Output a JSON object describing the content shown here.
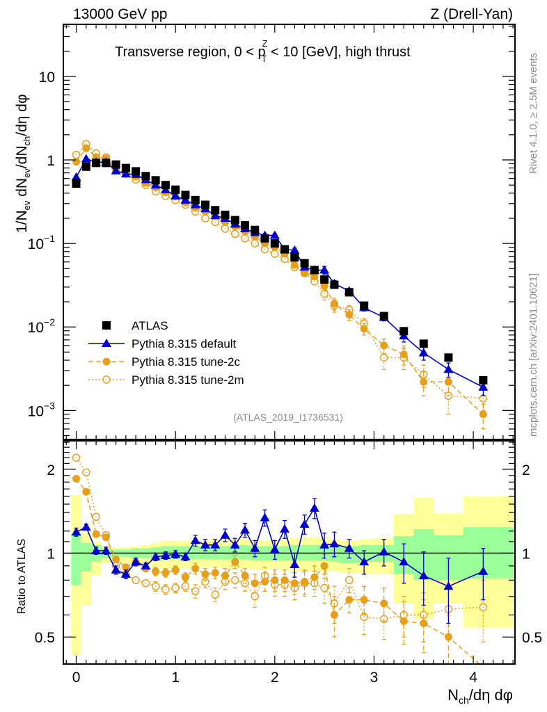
{
  "header": {
    "left": "13000 GeV pp",
    "right": "Z (Drell-Yan)"
  },
  "side_labels": {
    "rivet": "Rivet 4.1.0, ≥ 2.5M events",
    "mcplots": "mcplots.cern.ch [arXiv:2401.10621]"
  },
  "colors": {
    "atlas": "#000000",
    "default": "#0000cc",
    "tune2c": "#e69f1a",
    "tune2m": "#e69f1a",
    "band_inner": "#99ff99",
    "band_outer": "#ffff99"
  },
  "chart_data": [
    {
      "type": "scatter",
      "panel": "main",
      "title": "Transverse region, 0 < p_T^Z < 10 [GeV], high thrust",
      "title_parts": {
        "pre": "Transverse region, 0 < p",
        "sup": "Z",
        "sub": "T",
        "post": " < 10 [GeV], high thrust"
      },
      "analysis_label": "(ATLAS_2019_I1736531)",
      "xlabel": "N_ch/dη dφ",
      "xlabel_parts": {
        "main": "N",
        "sub": "ch",
        "post": "/dη dφ"
      },
      "ylabel": "1/N_ev dN_ev/dN_ch/dη dφ",
      "ylabel_parts": [
        "1/N",
        "ev",
        " dN",
        "ev",
        "/dN",
        "ch",
        "/dη dφ"
      ],
      "yscale": "log",
      "xlim": [
        -0.13,
        4.42
      ],
      "ylim": [
        0.00045,
        42
      ],
      "xticks": [
        0,
        1,
        2,
        3,
        4
      ],
      "xtick_labels": [
        "0",
        "1",
        "2",
        "3",
        "4"
      ],
      "yticks": [
        0.001,
        0.01,
        0.1,
        1,
        10
      ],
      "ytick_labels": [
        {
          "base": "10",
          "exp": "−3"
        },
        {
          "base": "10",
          "exp": "−2"
        },
        {
          "base": "10",
          "exp": "−1"
        },
        {
          "base": "1",
          "exp": ""
        },
        {
          "base": "10",
          "exp": ""
        }
      ],
      "legend_position": "bottom-left",
      "x": [
        0.0,
        0.1,
        0.2,
        0.3,
        0.4,
        0.5,
        0.6,
        0.7,
        0.8,
        0.9,
        1.0,
        1.1,
        1.2,
        1.3,
        1.4,
        1.5,
        1.6,
        1.7,
        1.8,
        1.9,
        2.0,
        2.1,
        2.2,
        2.3,
        2.4,
        2.5,
        2.6,
        2.75,
        2.9,
        3.1,
        3.3,
        3.5,
        3.75,
        4.1
      ],
      "series": [
        {
          "name": "ATLAS",
          "marker": "square",
          "line": "none",
          "values": [
            0.52,
            0.83,
            0.92,
            0.92,
            0.88,
            0.8,
            0.73,
            0.64,
            0.57,
            0.5,
            0.44,
            0.38,
            0.33,
            0.29,
            0.25,
            0.22,
            0.19,
            0.165,
            0.145,
            0.115,
            0.1,
            0.085,
            0.068,
            0.058,
            0.048,
            0.037,
            0.032,
            0.026,
            0.018,
            0.0135,
            0.0089,
            0.0063,
            0.0043,
            0.0023
          ]
        },
        {
          "name": "Pythia 8.315 default",
          "marker": "triangle",
          "line": "solid",
          "values": [
            0.62,
            1.03,
            0.94,
            0.94,
            0.74,
            0.68,
            0.67,
            0.58,
            0.5,
            0.44,
            0.37,
            0.33,
            0.29,
            0.26,
            0.215,
            0.2,
            0.17,
            0.15,
            0.135,
            0.125,
            0.125,
            0.085,
            0.083,
            0.052,
            0.048,
            0.048,
            0.033,
            0.027,
            0.017,
            0.013,
            0.0078,
            0.0049,
            0.0031,
            0.0019
          ],
          "errors": [
            0.02,
            0.03,
            0.02,
            0.02,
            0.02,
            0.02,
            0.02,
            0.02,
            0.02,
            0.01,
            0.01,
            0.01,
            0.01,
            0.01,
            0.008,
            0.007,
            0.006,
            0.006,
            0.005,
            0.005,
            0.006,
            0.004,
            0.005,
            0.003,
            0.004,
            0.005,
            0.003,
            0.002,
            0.0015,
            0.0012,
            0.0012,
            0.0009,
            0.0006,
            0.0004
          ]
        },
        {
          "name": "Pythia 8.315 tune-2c",
          "marker": "circle-filled",
          "line": "dashed",
          "values": [
            0.95,
            1.38,
            1.08,
            1.04,
            0.76,
            0.72,
            0.63,
            0.53,
            0.47,
            0.41,
            0.37,
            0.31,
            0.27,
            0.24,
            0.21,
            0.18,
            0.16,
            0.14,
            0.12,
            0.1,
            0.09,
            0.075,
            0.055,
            0.045,
            0.04,
            0.031,
            0.019,
            0.014,
            0.0095,
            0.006,
            0.0047,
            0.0022,
            0.0022,
            0.0009
          ],
          "errors": [
            0.02,
            0.03,
            0.02,
            0.02,
            0.02,
            0.02,
            0.02,
            0.02,
            0.02,
            0.01,
            0.01,
            0.01,
            0.01,
            0.01,
            0.008,
            0.007,
            0.006,
            0.006,
            0.005,
            0.005,
            0.005,
            0.004,
            0.004,
            0.003,
            0.003,
            0.004,
            0.003,
            0.002,
            0.0015,
            0.0012,
            0.0012,
            0.0007,
            0.0007,
            0.0003
          ]
        },
        {
          "name": "Pythia 8.315 tune-2m",
          "marker": "circle-open",
          "line": "dotted",
          "values": [
            1.15,
            1.55,
            1.2,
            1.08,
            0.8,
            0.68,
            0.58,
            0.5,
            0.42,
            0.37,
            0.33,
            0.29,
            0.24,
            0.2,
            0.18,
            0.15,
            0.13,
            0.115,
            0.1,
            0.085,
            0.075,
            0.065,
            0.052,
            0.044,
            0.035,
            0.025,
            0.018,
            0.016,
            0.011,
            0.0043,
            0.0043,
            0.0027,
            0.0015,
            0.0014
          ],
          "errors": [
            0.02,
            0.03,
            0.02,
            0.02,
            0.02,
            0.02,
            0.02,
            0.02,
            0.02,
            0.01,
            0.01,
            0.01,
            0.01,
            0.01,
            0.008,
            0.007,
            0.006,
            0.006,
            0.005,
            0.005,
            0.005,
            0.004,
            0.004,
            0.003,
            0.003,
            0.004,
            0.003,
            0.002,
            0.0015,
            0.0012,
            0.0012,
            0.0008,
            0.0006,
            0.0004
          ]
        }
      ]
    },
    {
      "type": "scatter",
      "panel": "ratio",
      "ylabel": "Ratio to ATLAS",
      "yscale": "log",
      "xlim": [
        -0.13,
        4.42
      ],
      "ylim": [
        0.4,
        2.53
      ],
      "yticks": [
        0.5,
        1,
        2
      ],
      "ytick_labels": [
        "0.5",
        "1",
        "2"
      ],
      "reference_line": 1,
      "bands": {
        "edges": [
          -0.05,
          0.05,
          0.15,
          0.25,
          0.35,
          0.45,
          0.55,
          0.65,
          0.75,
          0.85,
          0.95,
          1.05,
          1.15,
          1.25,
          1.35,
          1.45,
          1.55,
          1.65,
          1.75,
          1.85,
          1.95,
          2.05,
          2.15,
          2.25,
          2.35,
          2.45,
          2.55,
          2.65,
          2.85,
          3.0,
          3.2,
          3.4,
          3.6,
          3.9,
          4.4
        ],
        "inner_lo": [
          0.77,
          0.86,
          0.93,
          0.96,
          0.97,
          0.97,
          0.96,
          0.96,
          0.96,
          0.95,
          0.95,
          0.95,
          0.95,
          0.95,
          0.95,
          0.95,
          0.95,
          0.95,
          0.94,
          0.94,
          0.94,
          0.94,
          0.94,
          0.94,
          0.94,
          0.94,
          0.93,
          0.92,
          0.93,
          0.93,
          0.84,
          0.8,
          0.8,
          0.81
        ],
        "inner_hi": [
          1.17,
          1.09,
          1.07,
          1.04,
          1.03,
          1.03,
          1.04,
          1.04,
          1.05,
          1.06,
          1.06,
          1.06,
          1.06,
          1.06,
          1.06,
          1.06,
          1.07,
          1.07,
          1.06,
          1.06,
          1.06,
          1.06,
          1.07,
          1.07,
          1.07,
          1.07,
          1.06,
          1.06,
          1.07,
          1.07,
          1.15,
          1.22,
          1.16,
          1.24
        ],
        "outer_lo": [
          0.43,
          0.65,
          0.83,
          0.92,
          0.93,
          0.92,
          0.92,
          0.91,
          0.89,
          0.88,
          0.88,
          0.88,
          0.88,
          0.89,
          0.89,
          0.88,
          0.88,
          0.88,
          0.87,
          0.87,
          0.88,
          0.87,
          0.86,
          0.86,
          0.86,
          0.86,
          0.86,
          0.85,
          0.84,
          0.84,
          0.66,
          0.58,
          0.66,
          0.54
        ],
        "outer_hi": [
          1.62,
          1.18,
          1.1,
          1.06,
          1.05,
          1.05,
          1.06,
          1.07,
          1.09,
          1.11,
          1.11,
          1.11,
          1.11,
          1.11,
          1.12,
          1.12,
          1.13,
          1.12,
          1.11,
          1.11,
          1.11,
          1.12,
          1.13,
          1.14,
          1.14,
          1.14,
          1.12,
          1.11,
          1.12,
          1.13,
          1.38,
          1.58,
          1.39,
          1.6
        ]
      },
      "x": [
        0.0,
        0.1,
        0.2,
        0.3,
        0.4,
        0.5,
        0.6,
        0.7,
        0.8,
        0.9,
        1.0,
        1.1,
        1.2,
        1.3,
        1.4,
        1.5,
        1.6,
        1.7,
        1.8,
        1.9,
        2.0,
        2.1,
        2.2,
        2.3,
        2.4,
        2.5,
        2.6,
        2.75,
        2.9,
        3.1,
        3.3,
        3.5,
        3.75,
        4.1
      ],
      "series": [
        {
          "name": "Pythia 8.315 default",
          "marker": "triangle",
          "line": "solid",
          "values": [
            1.19,
            1.24,
            1.02,
            1.02,
            0.87,
            0.84,
            0.93,
            0.9,
            0.97,
            0.98,
            0.99,
            0.97,
            1.11,
            1.07,
            1.07,
            1.16,
            1.07,
            1.21,
            1.04,
            1.34,
            1.03,
            1.22,
            0.91,
            1.27,
            1.45,
            1.07,
            1.08,
            1.04,
            0.93,
            1.01,
            0.93,
            0.83,
            0.76,
            0.86
          ],
          "errors": [
            0.04,
            0.03,
            0.03,
            0.03,
            0.03,
            0.03,
            0.03,
            0.02,
            0.03,
            0.03,
            0.03,
            0.03,
            0.05,
            0.05,
            0.05,
            0.06,
            0.06,
            0.07,
            0.07,
            0.09,
            0.08,
            0.09,
            0.09,
            0.1,
            0.12,
            0.11,
            0.11,
            0.08,
            0.09,
            0.11,
            0.15,
            0.18,
            0.2,
            0.18
          ]
        },
        {
          "name": "Pythia 8.315 tune-2c",
          "marker": "circle-filled",
          "line": "dashed",
          "values": [
            1.85,
            1.66,
            1.17,
            1.14,
            0.95,
            0.89,
            0.93,
            0.88,
            0.86,
            0.85,
            0.87,
            0.82,
            0.88,
            0.84,
            0.85,
            0.83,
            0.93,
            0.83,
            0.78,
            0.79,
            0.8,
            0.8,
            0.78,
            0.79,
            0.82,
            0.9,
            0.6,
            0.68,
            0.68,
            0.66,
            0.57,
            0.56,
            0.5,
            0.39
          ],
          "errors": [
            0.03,
            0.03,
            0.03,
            0.03,
            0.02,
            0.02,
            0.02,
            0.02,
            0.03,
            0.03,
            0.03,
            0.03,
            0.04,
            0.04,
            0.04,
            0.05,
            0.05,
            0.05,
            0.06,
            0.06,
            0.07,
            0.07,
            0.07,
            0.08,
            0.08,
            0.09,
            0.1,
            0.07,
            0.08,
            0.09,
            0.1,
            0.12,
            0.1,
            0.15
          ]
        },
        {
          "name": "Pythia 8.315 tune-2m",
          "marker": "circle-open",
          "line": "dotted",
          "values": [
            2.2,
            1.95,
            1.35,
            1.16,
            0.9,
            0.84,
            0.8,
            0.78,
            0.76,
            0.74,
            0.75,
            0.76,
            0.73,
            0.79,
            0.71,
            0.79,
            0.8,
            0.78,
            0.7,
            0.83,
            0.77,
            0.77,
            0.75,
            0.78,
            0.78,
            0.75,
            0.66,
            0.8,
            0.59,
            0.58,
            0.6,
            0.6,
            0.63,
            0.64
          ],
          "errors": [
            0.04,
            0.03,
            0.03,
            0.03,
            0.02,
            0.02,
            0.02,
            0.02,
            0.03,
            0.03,
            0.03,
            0.03,
            0.04,
            0.04,
            0.04,
            0.05,
            0.05,
            0.05,
            0.06,
            0.06,
            0.07,
            0.07,
            0.07,
            0.08,
            0.08,
            0.09,
            0.1,
            0.08,
            0.08,
            0.09,
            0.1,
            0.12,
            0.12,
            0.16
          ]
        }
      ]
    }
  ]
}
